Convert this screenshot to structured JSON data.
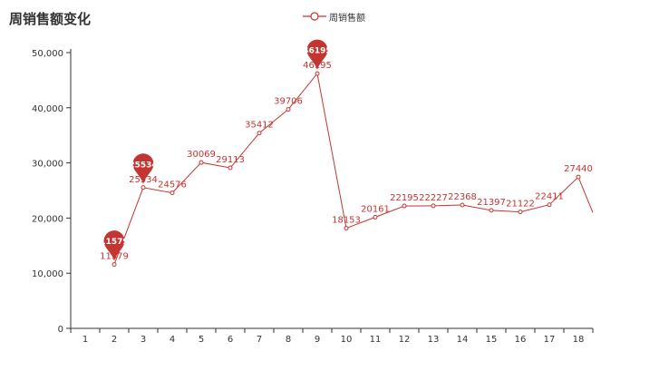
{
  "chart_data": {
    "type": "line",
    "title": "周销售额变化",
    "x": [
      "1",
      "2",
      "3",
      "4",
      "5",
      "6",
      "7",
      "8",
      "9",
      "10",
      "11",
      "12",
      "13",
      "14",
      "15",
      "16",
      "17",
      "18"
    ],
    "series": [
      {
        "name": "周销售额",
        "color": "#c23531",
        "values": [
          null,
          11579,
          25534,
          24576,
          30069,
          29113,
          35412,
          39706,
          46195,
          18153,
          20161,
          22195,
          22227,
          22368,
          21397,
          21122,
          22411,
          27440
        ],
        "trailing_value": 21000
      }
    ],
    "markers": [
      {
        "label": "11579",
        "x": "2",
        "value": 11579
      },
      {
        "label": "25534",
        "x": "3",
        "value": 25534
      },
      {
        "label": "46195",
        "x": "9",
        "value": 46195
      }
    ],
    "yticks": [
      "0",
      "10,000",
      "20,000",
      "30,000",
      "40,000",
      "50,000"
    ],
    "ylim": [
      0,
      50000
    ],
    "grid": false,
    "legend": "top-center"
  }
}
